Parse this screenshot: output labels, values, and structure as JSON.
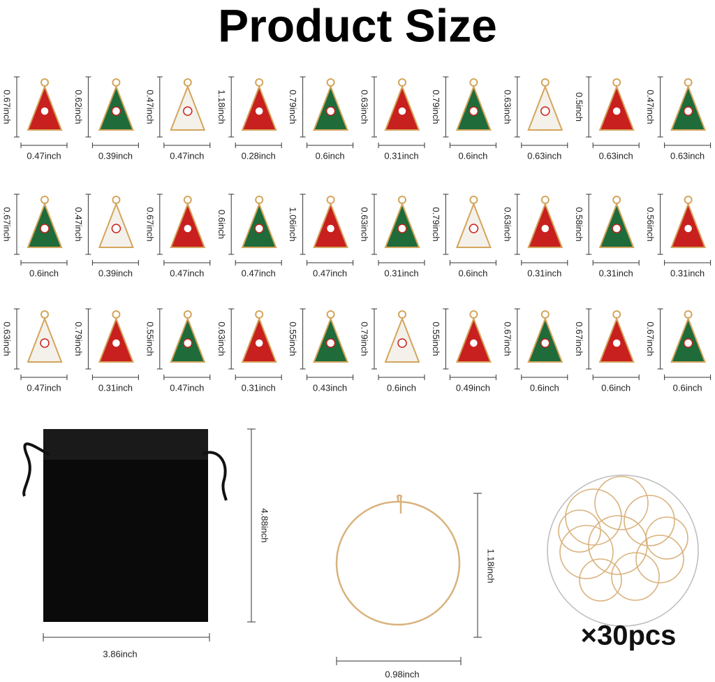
{
  "title": "Product Size",
  "charm_rows": [
    [
      {
        "height": "0.67inch",
        "width": "0.47inch"
      },
      {
        "height": "0.62inch",
        "width": "0.39inch"
      },
      {
        "height": "0.47inch",
        "width": "0.47inch"
      },
      {
        "height": "1.18inch",
        "width": "0.28inch"
      },
      {
        "height": "0.79inch",
        "width": "0.6inch"
      },
      {
        "height": "0.63inch",
        "width": "0.31inch"
      },
      {
        "height": "0.79inch",
        "width": "0.6inch"
      },
      {
        "height": "0.63inch",
        "width": "0.63inch"
      },
      {
        "height": "0.5inch",
        "width": "0.63inch"
      },
      {
        "height": "0.47inch",
        "width": "0.63inch"
      }
    ],
    [
      {
        "height": "0.67inch",
        "width": "0.6inch"
      },
      {
        "height": "0.47inch",
        "width": "0.39inch"
      },
      {
        "height": "0.67inch",
        "width": "0.47inch"
      },
      {
        "height": "0.6inch",
        "width": "0.47inch"
      },
      {
        "height": "1.06inch",
        "width": "0.47inch"
      },
      {
        "height": "0.63inch",
        "width": "0.31inch"
      },
      {
        "height": "0.79inch",
        "width": "0.6inch"
      },
      {
        "height": "0.63inch",
        "width": "0.31inch"
      },
      {
        "height": "0.58inch",
        "width": "0.31inch"
      },
      {
        "height": "0.56inch",
        "width": "0.31inch"
      }
    ],
    [
      {
        "height": "0.63inch",
        "width": "0.47inch"
      },
      {
        "height": "0.79inch",
        "width": "0.31inch"
      },
      {
        "height": "0.55inch",
        "width": "0.47inch"
      },
      {
        "height": "0.63inch",
        "width": "0.31inch"
      },
      {
        "height": "0.55inch",
        "width": "0.43inch"
      },
      {
        "height": "0.79inch",
        "width": "0.6inch"
      },
      {
        "height": "0.55inch",
        "width": "0.49inch"
      },
      {
        "height": "0.67inch",
        "width": "0.6inch"
      },
      {
        "height": "0.67inch",
        "width": "0.6inch"
      },
      {
        "height": "0.67inch",
        "width": "0.6inch"
      }
    ]
  ],
  "bag": {
    "height": "4.88inch",
    "width": "3.86inch"
  },
  "hoop": {
    "height": "1.18inch",
    "width": "0.98inch"
  },
  "quantity": "×30pcs"
}
